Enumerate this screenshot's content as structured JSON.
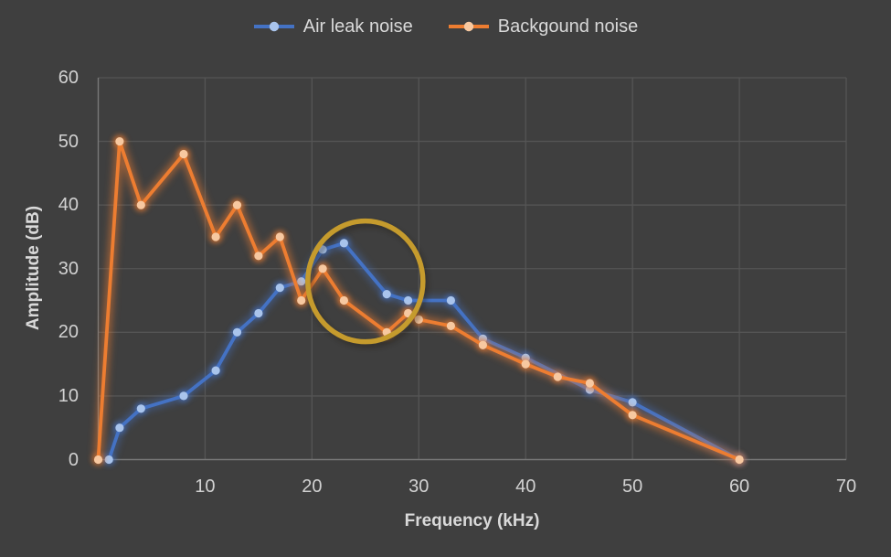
{
  "chart_data": {
    "type": "line",
    "title": "",
    "xlabel": "Frequency (kHz)",
    "ylabel": "Amplitude (dB)",
    "xlim": [
      0,
      70
    ],
    "ylim": [
      0,
      60
    ],
    "x_ticks": [
      10,
      20,
      30,
      40,
      50,
      60,
      70
    ],
    "y_ticks": [
      0,
      10,
      20,
      30,
      40,
      50,
      60
    ],
    "grid": true,
    "legend_position": "top-center",
    "series": [
      {
        "name": "Air leak noise",
        "color": "#4472C4",
        "marker_color": "#A9C4EC",
        "points": [
          [
            1,
            0
          ],
          [
            2,
            5
          ],
          [
            4,
            8
          ],
          [
            8,
            10
          ],
          [
            11,
            14
          ],
          [
            13,
            20
          ],
          [
            15,
            23
          ],
          [
            17,
            27
          ],
          [
            19,
            28
          ],
          [
            21,
            33
          ],
          [
            23,
            34
          ],
          [
            27,
            26
          ],
          [
            29,
            25
          ],
          [
            33,
            25
          ],
          [
            36,
            19
          ],
          [
            40,
            16
          ],
          [
            46,
            11
          ],
          [
            50,
            9
          ],
          [
            60,
            0
          ]
        ]
      },
      {
        "name": "Backgound noise",
        "color": "#ED7D31",
        "marker_color": "#F7C8A0",
        "points": [
          [
            0,
            0
          ],
          [
            2,
            50
          ],
          [
            4,
            40
          ],
          [
            8,
            48
          ],
          [
            11,
            35
          ],
          [
            13,
            40
          ],
          [
            15,
            32
          ],
          [
            17,
            35
          ],
          [
            19,
            25
          ],
          [
            21,
            30
          ],
          [
            23,
            25
          ],
          [
            27,
            20
          ],
          [
            29,
            23
          ],
          [
            30,
            22
          ],
          [
            33,
            21
          ],
          [
            36,
            18
          ],
          [
            40,
            15
          ],
          [
            43,
            13
          ],
          [
            46,
            12
          ],
          [
            50,
            7
          ],
          [
            60,
            0
          ]
        ]
      }
    ],
    "annotation": {
      "shape": "ellipse",
      "center_x_khz": 25,
      "center_y_db": 28,
      "radius_x_px": 63,
      "radius_y_px": 66,
      "color": "#C59B2D"
    }
  },
  "colors": {
    "background": "#3F3F3F",
    "gridline": "#555555",
    "axis_line": "#787878",
    "tick_text": "#D2D2D2",
    "label_text": "#D9D9D9"
  }
}
